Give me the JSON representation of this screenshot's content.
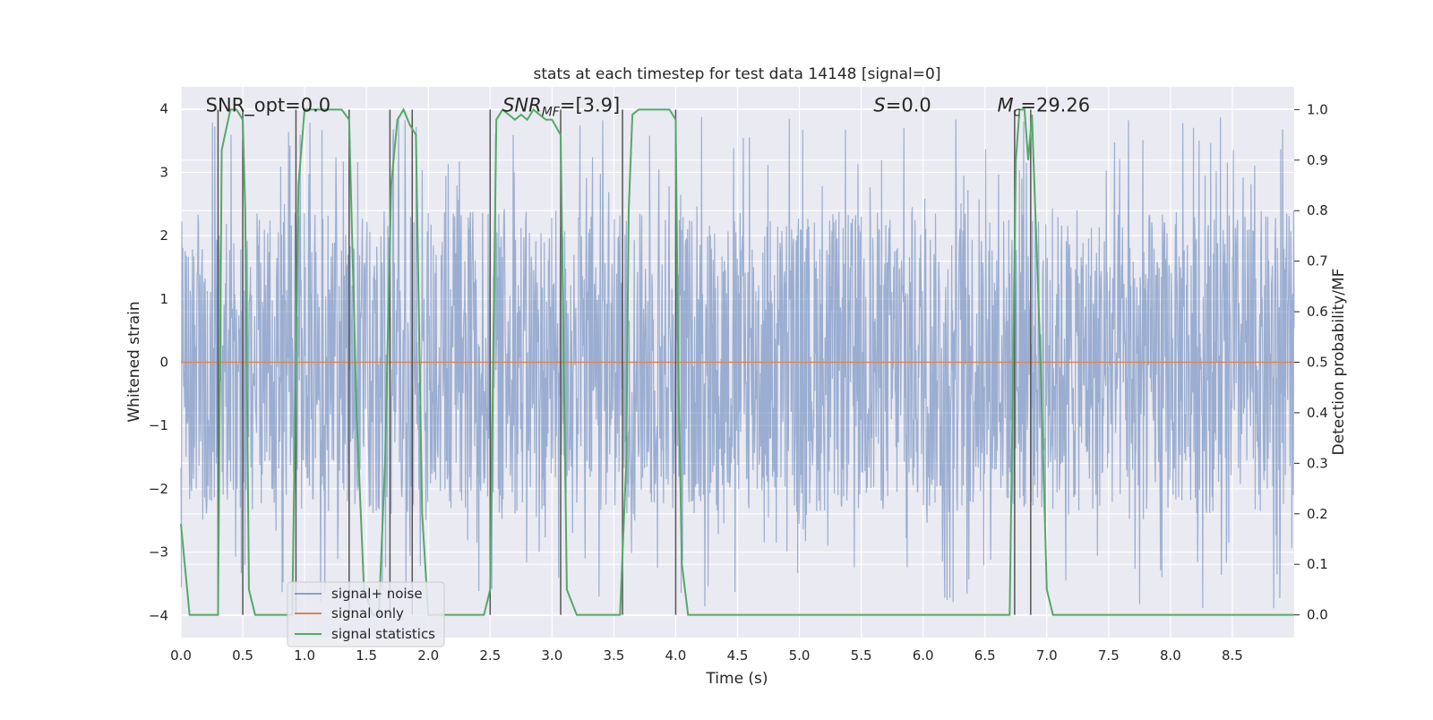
{
  "chart_data": {
    "type": "line",
    "title": "stats at each timestep for test data 14148 [signal=0]",
    "xlabel": "Time (s)",
    "ylabel_left": "Whitened strain",
    "ylabel_right": "Detection probability/MF",
    "xlim": [
      0,
      9.0
    ],
    "ylim_left": [
      -4.35,
      4.35
    ],
    "ylim_right": [
      -0.045,
      1.045
    ],
    "grid": true,
    "legend_position": "lower-left",
    "x_ticks": [
      "0.0",
      "0.5",
      "1.0",
      "1.5",
      "2.0",
      "2.5",
      "3.0",
      "3.5",
      "4.0",
      "4.5",
      "5.0",
      "5.5",
      "6.0",
      "6.5",
      "7.0",
      "7.5",
      "8.0",
      "8.5"
    ],
    "y_ticks_left": [
      "−4",
      "−3",
      "−2",
      "−1",
      "0",
      "1",
      "2",
      "3",
      "4"
    ],
    "y_ticks_right": [
      "0.0",
      "0.1",
      "0.2",
      "0.3",
      "0.4",
      "0.5",
      "0.6",
      "0.7",
      "0.8",
      "0.9",
      "1.0"
    ],
    "annotations": [
      {
        "id": "snr-opt",
        "text": "SNR_opt=0.0",
        "x": 0.2,
        "y": 4.0
      },
      {
        "id": "snr-mf",
        "text": "SNR_MF=[3.9]",
        "x": 2.6,
        "y": 4.0
      },
      {
        "id": "s-stat",
        "text": "S=0.0",
        "x": 5.6,
        "y": 4.0
      },
      {
        "id": "chirp-mass",
        "text": "M_c=29.26",
        "x": 6.6,
        "y": 4.0
      }
    ],
    "series": [
      {
        "name": "signal+ noise",
        "axis": "left",
        "color": "#4c72b0",
        "description": "whitened strain noise, amplitude mostly within ±2.5 with spikes up to about ±3.9",
        "typical_envelope": 2.4,
        "max_spike": 3.9
      },
      {
        "name": "signal only",
        "axis": "left",
        "color": "#dd8452",
        "x": [
          0.0,
          9.0
        ],
        "y": [
          0.0,
          0.0
        ]
      },
      {
        "name": "signal statistics",
        "axis": "right",
        "color": "#55a868",
        "x": [
          0.0,
          0.07,
          0.1,
          0.3,
          0.33,
          0.4,
          0.45,
          0.5,
          0.52,
          0.55,
          0.6,
          0.9,
          0.95,
          1.0,
          1.3,
          1.36,
          1.42,
          1.48,
          1.55,
          1.6,
          1.65,
          1.7,
          1.75,
          1.8,
          1.85,
          1.9,
          1.95,
          2.0,
          2.45,
          2.5,
          2.55,
          2.6,
          2.65,
          2.7,
          2.75,
          2.8,
          2.85,
          2.9,
          2.95,
          3.0,
          3.07,
          3.12,
          3.2,
          3.55,
          3.6,
          3.62,
          3.65,
          3.7,
          3.75,
          3.8,
          3.85,
          3.9,
          3.95,
          4.0,
          4.02,
          4.05,
          4.1,
          6.7,
          6.75,
          6.78,
          6.8,
          6.82,
          6.85,
          6.88,
          6.9,
          6.95,
          7.0,
          7.05,
          9.0
        ],
        "y": [
          0.18,
          0.0,
          0.0,
          0.0,
          0.92,
          1.0,
          1.0,
          0.98,
          0.8,
          0.05,
          0.0,
          0.0,
          0.85,
          1.0,
          1.0,
          0.98,
          0.4,
          0.05,
          0.0,
          0.0,
          0.3,
          0.85,
          0.98,
          1.0,
          0.97,
          0.95,
          0.2,
          0.0,
          0.0,
          0.05,
          0.98,
          1.0,
          0.99,
          0.98,
          0.99,
          0.98,
          1.0,
          0.99,
          0.98,
          0.98,
          0.95,
          0.05,
          0.0,
          0.0,
          0.3,
          0.8,
          0.99,
          1.0,
          1.0,
          1.0,
          1.0,
          1.0,
          1.0,
          0.98,
          0.5,
          0.1,
          0.0,
          0.0,
          0.9,
          1.0,
          1.0,
          1.0,
          0.9,
          0.99,
          0.85,
          0.5,
          0.05,
          0.0,
          0.0
        ]
      }
    ],
    "vertical_lines": [
      0.3,
      0.5,
      0.93,
      1.36,
      1.69,
      1.87,
      2.5,
      3.07,
      3.57,
      4.0,
      6.74,
      6.87
    ],
    "vertical_lines_color": "#555555"
  }
}
